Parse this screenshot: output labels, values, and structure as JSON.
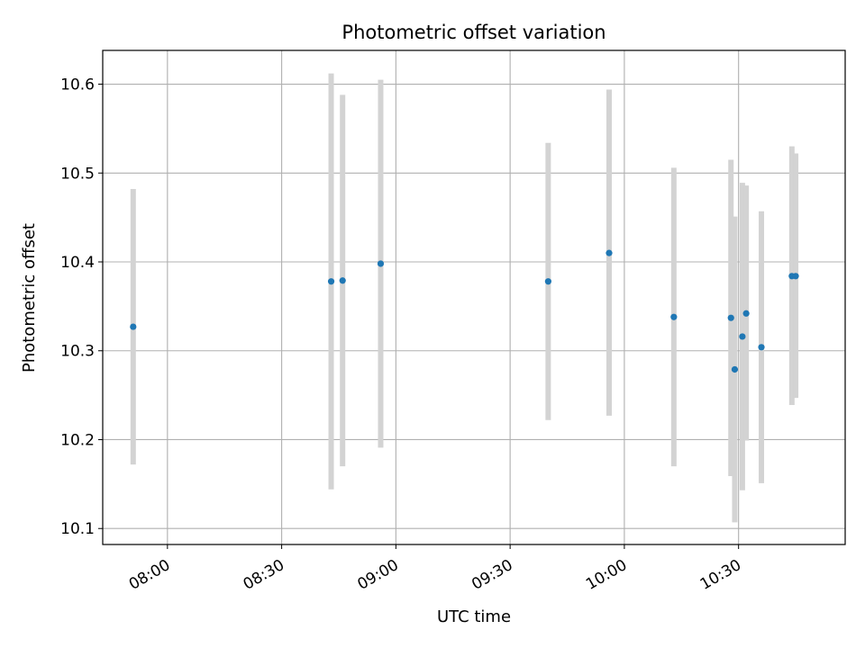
{
  "chart_data": {
    "type": "scatter",
    "title": "Photometric offset variation",
    "xlabel": "UTC time",
    "ylabel": "Photometric offset",
    "x_unit": "UTC time of day",
    "xlim": [
      "07:43",
      "10:58"
    ],
    "ylim": [
      10.082,
      10.638
    ],
    "xticks": [
      "08:00",
      "08:30",
      "09:00",
      "09:30",
      "10:00",
      "10:30"
    ],
    "yticks": [
      10.1,
      10.2,
      10.3,
      10.4,
      10.5,
      10.6
    ],
    "grid": true,
    "colors": {
      "point": "#1f77b4",
      "errorbar": "#d3d3d3",
      "grid": "#b0b0b0"
    },
    "points": [
      {
        "x": "07:51",
        "y": 10.327,
        "yerr_low": 10.172,
        "yerr_high": 10.482
      },
      {
        "x": "08:43",
        "y": 10.378,
        "yerr_low": 10.144,
        "yerr_high": 10.612
      },
      {
        "x": "08:46",
        "y": 10.379,
        "yerr_low": 10.17,
        "yerr_high": 10.588
      },
      {
        "x": "08:56",
        "y": 10.398,
        "yerr_low": 10.191,
        "yerr_high": 10.605
      },
      {
        "x": "09:40",
        "y": 10.378,
        "yerr_low": 10.222,
        "yerr_high": 10.534
      },
      {
        "x": "09:56",
        "y": 10.41,
        "yerr_low": 10.227,
        "yerr_high": 10.594
      },
      {
        "x": "10:13",
        "y": 10.338,
        "yerr_low": 10.17,
        "yerr_high": 10.506
      },
      {
        "x": "10:28",
        "y": 10.337,
        "yerr_low": 10.159,
        "yerr_high": 10.515
      },
      {
        "x": "10:29",
        "y": 10.279,
        "yerr_low": 10.107,
        "yerr_high": 10.451
      },
      {
        "x": "10:31",
        "y": 10.316,
        "yerr_low": 10.143,
        "yerr_high": 10.489
      },
      {
        "x": "10:32",
        "y": 10.342,
        "yerr_low": 10.199,
        "yerr_high": 10.486
      },
      {
        "x": "10:36",
        "y": 10.304,
        "yerr_low": 10.151,
        "yerr_high": 10.457
      },
      {
        "x": "10:44",
        "y": 10.384,
        "yerr_low": 10.239,
        "yerr_high": 10.53
      },
      {
        "x": "10:45",
        "y": 10.384,
        "yerr_low": 10.247,
        "yerr_high": 10.522
      }
    ]
  }
}
